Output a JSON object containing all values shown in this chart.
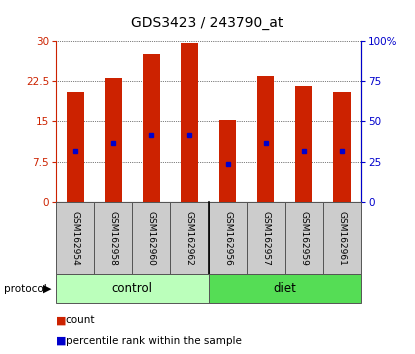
{
  "title": "GDS3423 / 243790_at",
  "categories": [
    "GSM162954",
    "GSM162958",
    "GSM162960",
    "GSM162962",
    "GSM162956",
    "GSM162957",
    "GSM162959",
    "GSM162961"
  ],
  "bar_heights": [
    20.5,
    23.0,
    27.5,
    29.5,
    15.2,
    23.5,
    21.5,
    20.5
  ],
  "percentile_vals": [
    9.5,
    11.0,
    12.5,
    12.5,
    7.0,
    11.0,
    9.5,
    9.5
  ],
  "bar_color": "#cc2200",
  "dot_color": "#0000cc",
  "ylim_left": [
    0,
    30
  ],
  "ylim_right": [
    0,
    100
  ],
  "yticks_left": [
    0,
    7.5,
    15,
    22.5,
    30
  ],
  "yticks_right": [
    0,
    25,
    50,
    75,
    100
  ],
  "ytick_labels_left": [
    "0",
    "7.5",
    "15",
    "22.5",
    "30"
  ],
  "ytick_labels_right": [
    "0",
    "25",
    "50",
    "75",
    "100%"
  ],
  "groups": [
    {
      "label": "control",
      "color": "#bbffbb"
    },
    {
      "label": "diet",
      "color": "#55dd55"
    }
  ],
  "protocol_label": "protocol",
  "legend_count_label": "count",
  "legend_pct_label": "percentile rank within the sample",
  "bar_width": 0.45,
  "title_fontsize": 10,
  "tick_fontsize": 7.5,
  "label_fontsize": 6.5,
  "group_fontsize": 8.5,
  "left_axis_color": "#cc2200",
  "right_axis_color": "#0000cc",
  "bg_color": "#ffffff"
}
